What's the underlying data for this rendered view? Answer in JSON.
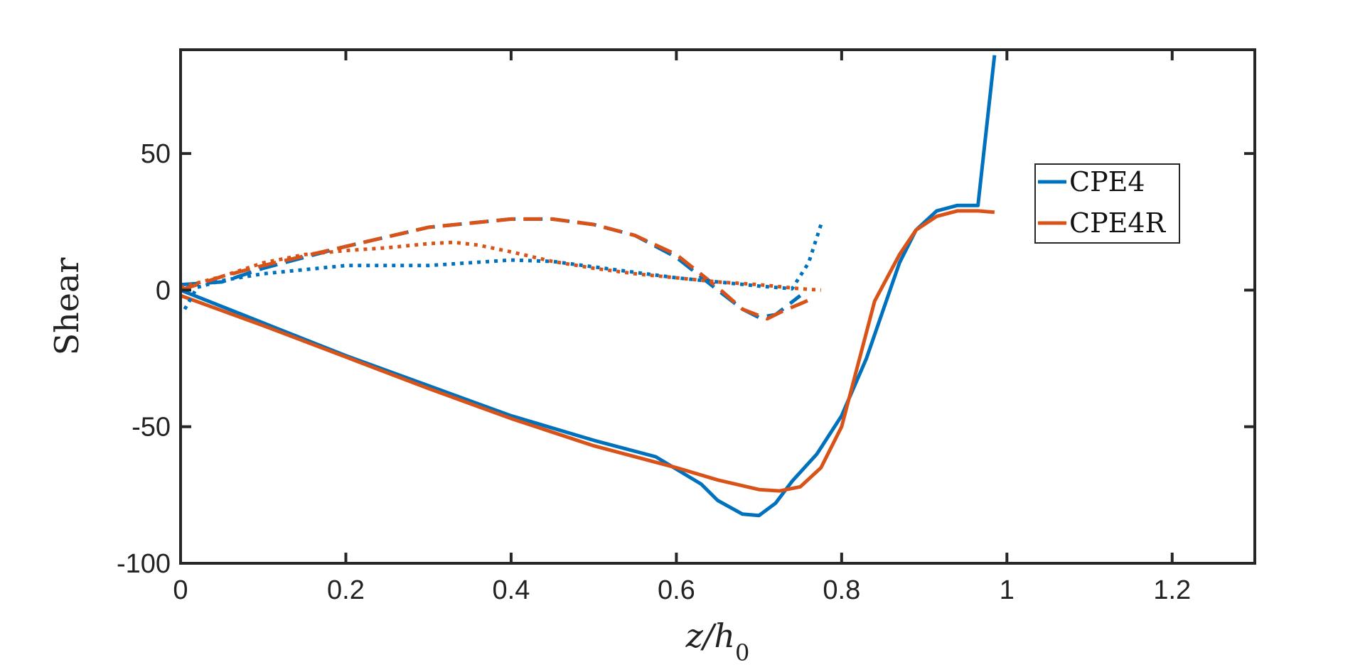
{
  "chart_data": {
    "type": "line",
    "xlabel": "z/h0",
    "ylabel": "Shear",
    "xlim": [
      0,
      1.3
    ],
    "ylim": [
      -100,
      88
    ],
    "xticks": [
      0,
      0.2,
      0.4,
      0.6,
      0.8,
      1,
      1.2
    ],
    "xtick_labels": [
      "0",
      "0.2",
      "0.4",
      "0.6",
      "0.8",
      "1",
      "1.2"
    ],
    "yticks": [
      -100,
      -50,
      0,
      50
    ],
    "ytick_labels": [
      "-100",
      "-50",
      "0",
      "50"
    ],
    "grid": false,
    "legend": {
      "placement": "top-right",
      "entries": [
        "CPE4",
        "CPE4R"
      ]
    },
    "colors": {
      "CPE4": "#0072BD",
      "CPE4R": "#D95319"
    },
    "series": [
      {
        "name": "CPE4",
        "style": "solid",
        "x": [
          0,
          0.1,
          0.2,
          0.3,
          0.4,
          0.5,
          0.575,
          0.63,
          0.65,
          0.68,
          0.7,
          0.72,
          0.74,
          0.77,
          0.8,
          0.83,
          0.87,
          0.89,
          0.915,
          0.94,
          0.965,
          0.985
        ],
        "y": [
          0,
          -12,
          -24,
          -35,
          -46,
          -55,
          -61,
          -71,
          -77,
          -82,
          -82.5,
          -78,
          -70,
          -60,
          -46,
          -25,
          10,
          22,
          29,
          31,
          31,
          86
        ]
      },
      {
        "name": "CPE4R",
        "style": "solid",
        "x": [
          0,
          0.1,
          0.2,
          0.3,
          0.4,
          0.5,
          0.6,
          0.65,
          0.7,
          0.725,
          0.75,
          0.775,
          0.8,
          0.84,
          0.87,
          0.89,
          0.915,
          0.94,
          0.965,
          0.985
        ],
        "y": [
          -2,
          -13,
          -24.5,
          -36,
          -47,
          -57,
          -65,
          -69.5,
          -73,
          -73.5,
          -72,
          -65,
          -50,
          -4,
          13,
          22,
          27,
          29,
          29,
          28.5
        ]
      },
      {
        "name": "",
        "series_of": "CPE4",
        "style": "dashed",
        "x": [
          0,
          0.05,
          0.1,
          0.2,
          0.3,
          0.4,
          0.45,
          0.5,
          0.55,
          0.6,
          0.65,
          0.68,
          0.7,
          0.72,
          0.75
        ],
        "y": [
          2,
          3,
          8,
          16,
          23,
          26,
          26,
          24,
          20,
          12,
          0,
          -7,
          -10,
          -9,
          -2
        ]
      },
      {
        "name": "",
        "series_of": "CPE4R",
        "style": "dashed",
        "x": [
          0,
          0.05,
          0.1,
          0.2,
          0.3,
          0.4,
          0.45,
          0.5,
          0.55,
          0.6,
          0.65,
          0.68,
          0.71,
          0.73,
          0.75,
          0.765
        ],
        "y": [
          0,
          5,
          9,
          16,
          23,
          26,
          26,
          24,
          20,
          13,
          1,
          -7,
          -10.5,
          -7.5,
          -5,
          -3
        ]
      },
      {
        "name": "",
        "series_of": "CPE4",
        "style": "dotted",
        "x": [
          0.005,
          0.02,
          0.05,
          0.1,
          0.2,
          0.3,
          0.4,
          0.45,
          0.5,
          0.55,
          0.6,
          0.65,
          0.7,
          0.74,
          0.76,
          0.775
        ],
        "y": [
          -7,
          1,
          3.5,
          6,
          9,
          9,
          11,
          10.5,
          8.5,
          6.5,
          4.5,
          3,
          1.5,
          0.5,
          10,
          24
        ]
      },
      {
        "name": "",
        "series_of": "CPE4R",
        "style": "dotted",
        "x": [
          0,
          0.05,
          0.1,
          0.15,
          0.2,
          0.25,
          0.3,
          0.33,
          0.36,
          0.4,
          0.45,
          0.5,
          0.55,
          0.6,
          0.65,
          0.7,
          0.75,
          0.775
        ],
        "y": [
          1,
          5,
          10,
          13,
          14.5,
          15.5,
          17,
          17.5,
          16.5,
          14,
          10.5,
          8,
          6,
          4.5,
          3,
          2,
          0.5,
          0
        ]
      }
    ]
  }
}
